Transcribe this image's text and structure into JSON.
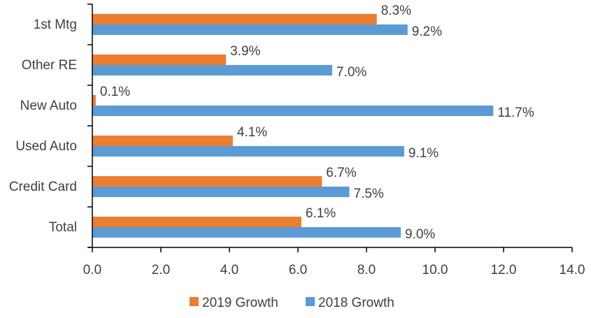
{
  "chart_data": {
    "type": "bar",
    "orientation": "horizontal",
    "title": "",
    "xlabel": "",
    "ylabel": "",
    "categories": [
      "1st Mtg",
      "Other RE",
      "New Auto",
      "Used Auto",
      "Credit Card",
      "Total"
    ],
    "series": [
      {
        "name": "2019 Growth",
        "color": "#ED7D31",
        "values": [
          8.3,
          3.9,
          0.1,
          4.1,
          6.7,
          6.1
        ],
        "labels": [
          "8.3%",
          "3.9%",
          "0.1%",
          "4.1%",
          "6.7%",
          "6.1%"
        ]
      },
      {
        "name": "2018 Growth",
        "color": "#5B9BD5",
        "values": [
          9.2,
          7.0,
          11.7,
          9.1,
          7.5,
          9.0
        ],
        "labels": [
          "9.2%",
          "7.0%",
          "11.7%",
          "9.1%",
          "7.5%",
          "9.0%"
        ]
      }
    ],
    "xlim": [
      0,
      14
    ],
    "xticks": [
      "0.0",
      "2.0",
      "4.0",
      "6.0",
      "8.0",
      "10.0",
      "12.0",
      "14.0"
    ],
    "grid": false,
    "legend": "bottom-center"
  }
}
